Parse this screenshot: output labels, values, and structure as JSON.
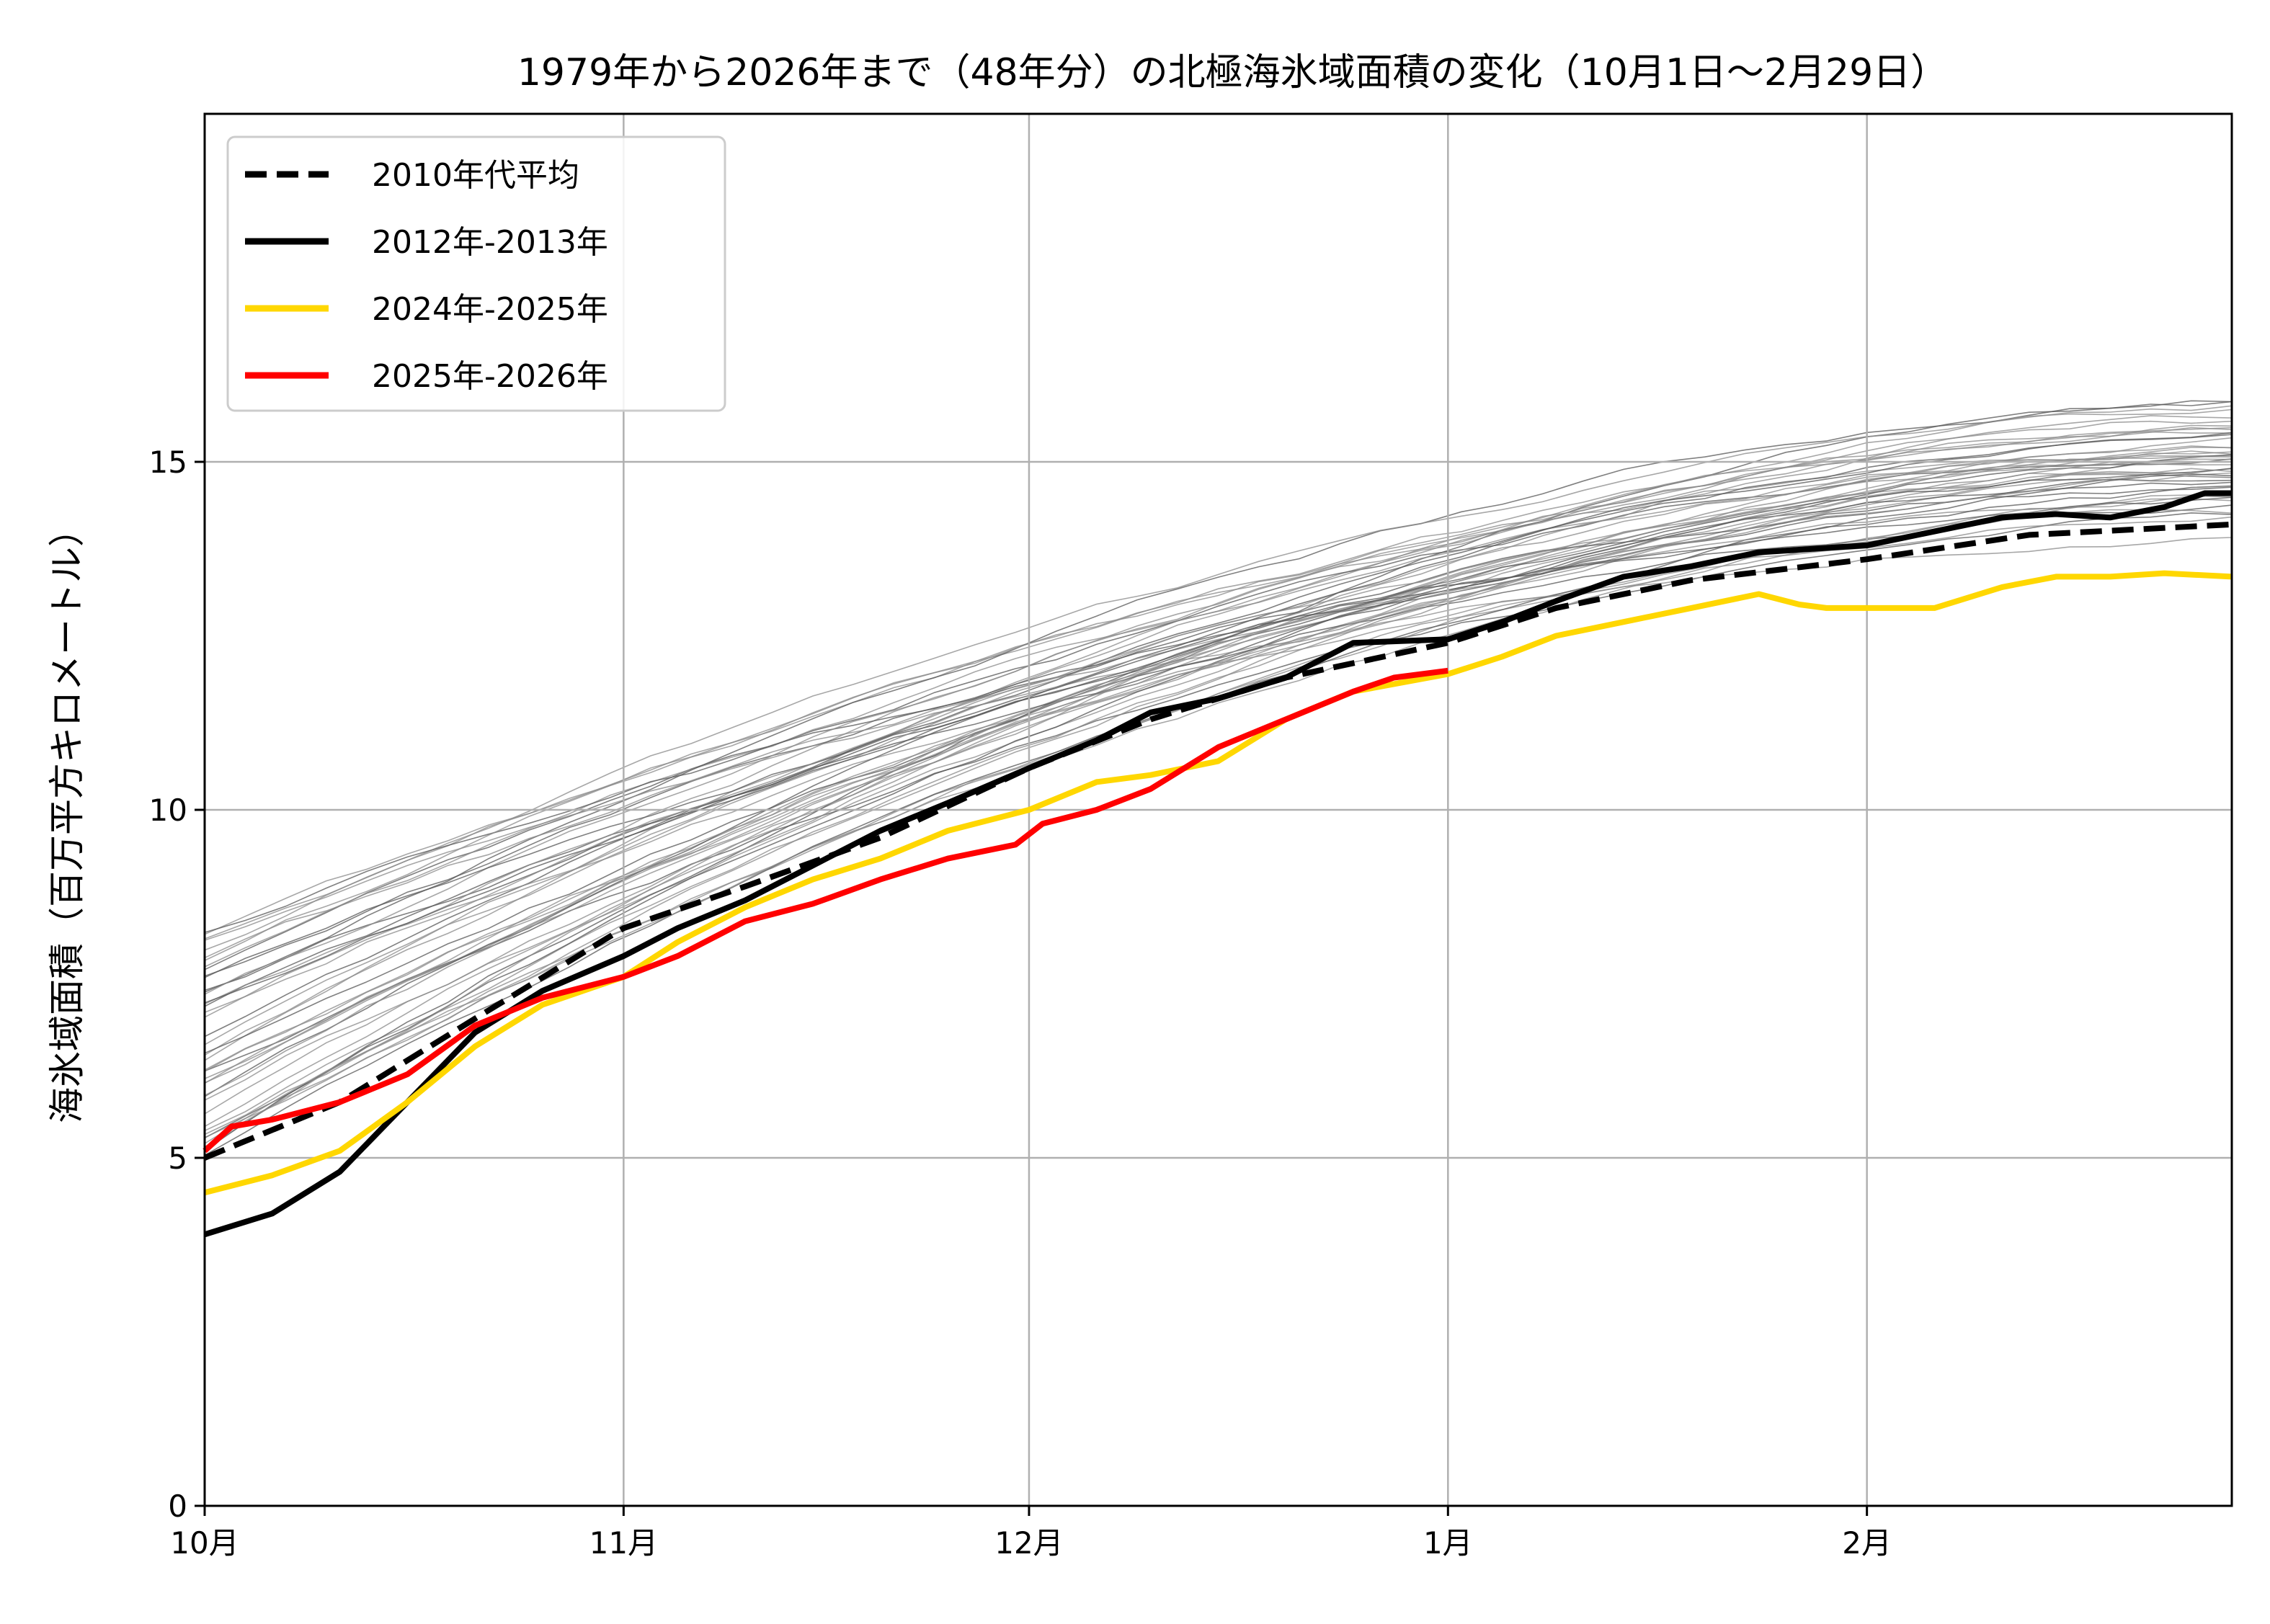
{
  "chart_data": {
    "type": "line",
    "title": "1979年から2026年まで（48年分）の北極海氷域面積の変化（10月1日〜2月29日）",
    "xlabel": "",
    "ylabel": "海氷域面積（百万平方キロメートル）",
    "x_unit": "days since 10月1日",
    "xlim": [
      0,
      150
    ],
    "ylim": [
      0,
      20
    ],
    "grid": true,
    "legend_position": "top-left",
    "x_ticks": [
      {
        "value": 0,
        "label": "10月"
      },
      {
        "value": 31,
        "label": "11月"
      },
      {
        "value": 61,
        "label": "12月"
      },
      {
        "value": 92,
        "label": "1月"
      },
      {
        "value": 123,
        "label": "2月"
      }
    ],
    "y_ticks": [
      {
        "value": 0,
        "label": "0"
      },
      {
        "value": 5,
        "label": "5"
      },
      {
        "value": 10,
        "label": "10"
      },
      {
        "value": 15,
        "label": "15"
      }
    ],
    "legend": [
      {
        "label": "2010年代平均",
        "color": "#000000",
        "style": "dashed"
      },
      {
        "label": "2012年-2013年",
        "color": "#000000",
        "style": "solid"
      },
      {
        "label": "2024年-2025年",
        "color": "#FFD700",
        "style": "solid"
      },
      {
        "label": "2025年-2026年",
        "color": "#FF0000",
        "style": "solid"
      }
    ],
    "series": [
      {
        "name": "2010年代平均",
        "color": "#000000",
        "style": "dashed",
        "x": [
          0,
          10,
          20,
          31,
          40,
          50,
          61,
          70,
          80,
          92,
          100,
          110,
          123,
          135,
          150
        ],
        "y": [
          5.0,
          5.8,
          7.0,
          8.3,
          8.9,
          9.6,
          10.6,
          11.3,
          11.9,
          12.4,
          12.9,
          13.3,
          13.6,
          13.95,
          14.1
        ]
      },
      {
        "name": "2012年-2013年",
        "color": "#000000",
        "style": "solid",
        "x": [
          0,
          5,
          10,
          15,
          20,
          25,
          31,
          35,
          40,
          45,
          50,
          55,
          61,
          66,
          70,
          75,
          80,
          85,
          92,
          96,
          100,
          105,
          110,
          115,
          123,
          128,
          133,
          137,
          141,
          145,
          148,
          150
        ],
        "y": [
          3.9,
          4.2,
          4.8,
          5.8,
          6.8,
          7.4,
          7.9,
          8.3,
          8.7,
          9.2,
          9.7,
          10.1,
          10.6,
          11.0,
          11.4,
          11.6,
          11.9,
          12.4,
          12.45,
          12.7,
          13.0,
          13.35,
          13.5,
          13.7,
          13.8,
          14.0,
          14.2,
          14.25,
          14.2,
          14.35,
          14.55,
          14.55
        ]
      },
      {
        "name": "2024年-2025年",
        "color": "#FFD700",
        "style": "solid",
        "x": [
          0,
          5,
          10,
          15,
          20,
          25,
          31,
          35,
          40,
          45,
          50,
          55,
          61,
          66,
          70,
          75,
          80,
          85,
          92,
          96,
          100,
          105,
          110,
          115,
          118,
          120,
          123,
          128,
          133,
          137,
          141,
          145,
          150
        ],
        "y": [
          4.5,
          4.75,
          5.1,
          5.8,
          6.6,
          7.2,
          7.6,
          8.1,
          8.6,
          9.0,
          9.3,
          9.7,
          10.0,
          10.4,
          10.5,
          10.7,
          11.3,
          11.7,
          11.95,
          12.2,
          12.5,
          12.7,
          12.9,
          13.1,
          12.95,
          12.9,
          12.9,
          12.9,
          13.2,
          13.35,
          13.35,
          13.4,
          13.35
        ]
      },
      {
        "name": "2025年-2026年",
        "color": "#FF0000",
        "style": "solid",
        "x": [
          0,
          2,
          5,
          10,
          15,
          20,
          25,
          31,
          35,
          40,
          45,
          50,
          55,
          60,
          62,
          66,
          70,
          75,
          80,
          85,
          88,
          92
        ],
        "y": [
          5.1,
          5.45,
          5.55,
          5.8,
          6.2,
          6.9,
          7.3,
          7.6,
          7.9,
          8.4,
          8.65,
          9.0,
          9.3,
          9.5,
          9.8,
          10.0,
          10.3,
          10.9,
          11.3,
          11.7,
          11.9,
          12.0
        ]
      }
    ],
    "background_series_count": 44,
    "background_series_color": "#7f7f7f"
  }
}
